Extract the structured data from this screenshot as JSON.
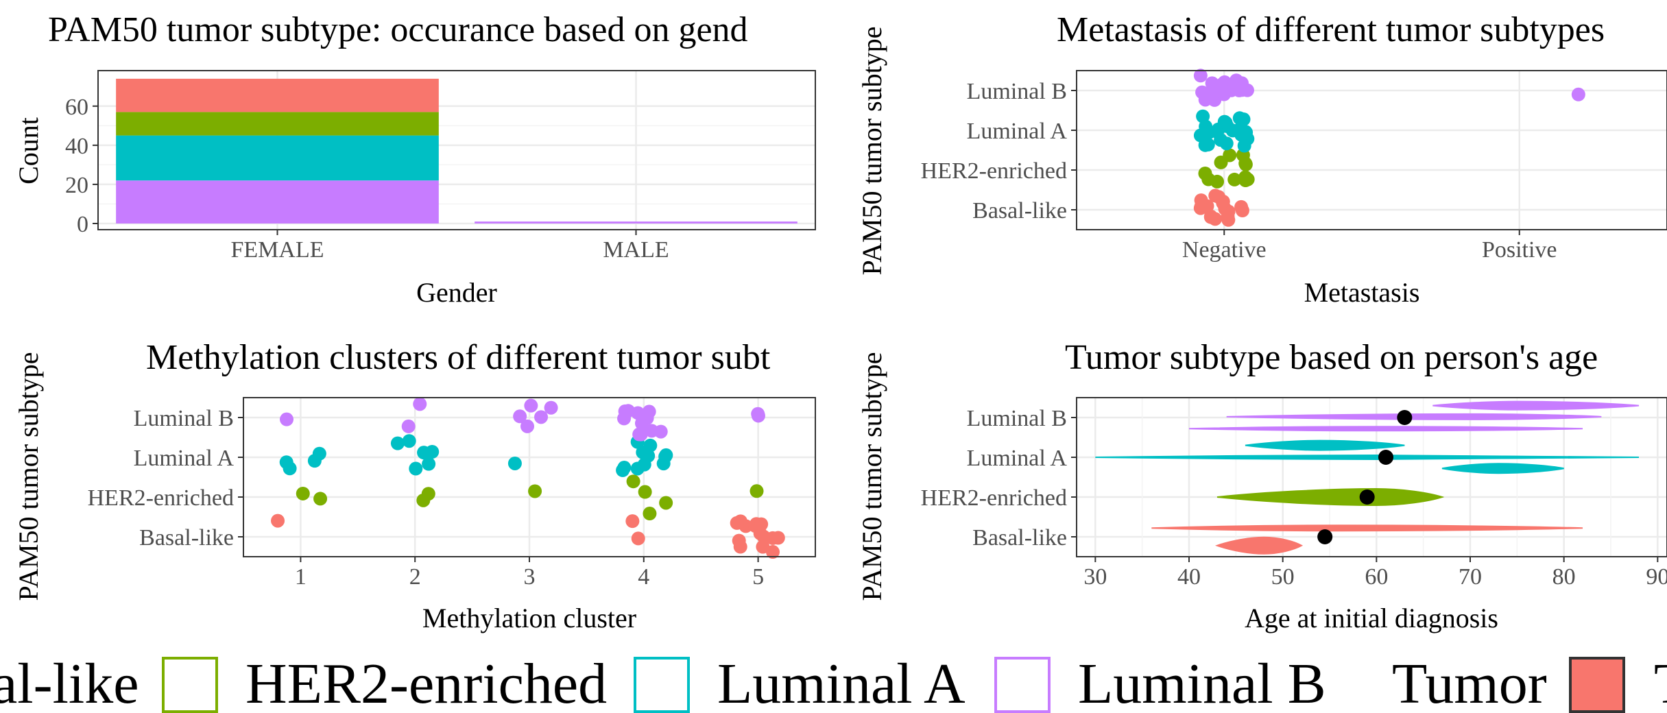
{
  "colors": {
    "basal_like": "#F8766D",
    "her2_enriched": "#7CAE00",
    "luminal_a": "#00BFC4",
    "luminal_b": "#C77CFF",
    "grid": "#ebebeb",
    "border": "#333333",
    "mean_dot": "#000000"
  },
  "legend": {
    "items": [
      "al-like",
      "HER2-enriched",
      "Luminal A",
      "Luminal B"
    ],
    "tumor_label": "Tumor",
    "tail_label": "T"
  },
  "chart_data": [
    {
      "type": "bar",
      "title": "PAM50 tumor subtype: occurance based on gend",
      "xlabel": "Gender",
      "ylabel": "Count",
      "categories": [
        "FEMALE",
        "MALE"
      ],
      "yticks": [
        "0",
        "20",
        "40",
        "60"
      ],
      "ylim": [
        0,
        75
      ],
      "stacked": true,
      "series": [
        {
          "name": "Luminal B",
          "values": [
            22,
            1
          ]
        },
        {
          "name": "Luminal A",
          "values": [
            23,
            0
          ]
        },
        {
          "name": "HER2-enriched",
          "values": [
            12,
            0
          ]
        },
        {
          "name": "Basal-like",
          "values": [
            17,
            0
          ]
        }
      ],
      "grid": true
    },
    {
      "type": "scatter",
      "title": "Metastasis of different tumor subtypes",
      "xlabel": "Metastasis",
      "ylabel": "PAM50 tumor subtype",
      "x_categories": [
        "Negative",
        "Positive"
      ],
      "y_categories": [
        "Basal-like",
        "HER2-enriched",
        "Luminal A",
        "Luminal B"
      ],
      "jitter": true,
      "counts": [
        {
          "subtype": "Basal-like",
          "x": "Negative",
          "n": 17
        },
        {
          "subtype": "HER2-enriched",
          "x": "Negative",
          "n": 12
        },
        {
          "subtype": "Luminal A",
          "x": "Negative",
          "n": 23
        },
        {
          "subtype": "Luminal B",
          "x": "Negative",
          "n": 21
        },
        {
          "subtype": "Luminal B",
          "x": "Positive",
          "n": 1
        }
      ],
      "grid": true
    },
    {
      "type": "scatter",
      "title": "Methylation clusters of different tumor subt",
      "xlabel": "Methylation cluster",
      "ylabel": "PAM50 tumor subtype",
      "x_categories": [
        "1",
        "2",
        "3",
        "4",
        "5"
      ],
      "y_categories": [
        "Basal-like",
        "HER2-enriched",
        "Luminal A",
        "Luminal B"
      ],
      "jitter": true,
      "counts": [
        {
          "subtype": "Basal-like",
          "x": "1",
          "n": 1
        },
        {
          "subtype": "Basal-like",
          "x": "4",
          "n": 2
        },
        {
          "subtype": "Basal-like",
          "x": "5",
          "n": 14
        },
        {
          "subtype": "HER2-enriched",
          "x": "1",
          "n": 2
        },
        {
          "subtype": "HER2-enriched",
          "x": "2",
          "n": 2
        },
        {
          "subtype": "HER2-enriched",
          "x": "3",
          "n": 1
        },
        {
          "subtype": "HER2-enriched",
          "x": "4",
          "n": 4
        },
        {
          "subtype": "HER2-enriched",
          "x": "5",
          "n": 1
        },
        {
          "subtype": "Luminal A",
          "x": "1",
          "n": 4
        },
        {
          "subtype": "Luminal A",
          "x": "2",
          "n": 6
        },
        {
          "subtype": "Luminal A",
          "x": "3",
          "n": 1
        },
        {
          "subtype": "Luminal A",
          "x": "4",
          "n": 11
        },
        {
          "subtype": "Luminal B",
          "x": "1",
          "n": 1
        },
        {
          "subtype": "Luminal B",
          "x": "2",
          "n": 2
        },
        {
          "subtype": "Luminal B",
          "x": "3",
          "n": 5
        },
        {
          "subtype": "Luminal B",
          "x": "4",
          "n": 11
        },
        {
          "subtype": "Luminal B",
          "x": "5",
          "n": 2
        }
      ],
      "grid": true
    },
    {
      "type": "violin",
      "title": "Tumor subtype based on person's age",
      "xlabel": "Age at initial diagnosis",
      "ylabel": "PAM50 tumor subtype",
      "xticks": [
        "30",
        "40",
        "50",
        "60",
        "70",
        "80",
        "90"
      ],
      "xlim": [
        28,
        91
      ],
      "y_categories": [
        "Basal-like",
        "HER2-enriched",
        "Luminal A",
        "Luminal B"
      ],
      "means": [
        {
          "subtype": "Basal-like",
          "value": 54.5
        },
        {
          "subtype": "HER2-enriched",
          "value": 59
        },
        {
          "subtype": "Luminal A",
          "value": 61
        },
        {
          "subtype": "Luminal B",
          "value": 63
        }
      ],
      "grid": true
    }
  ]
}
